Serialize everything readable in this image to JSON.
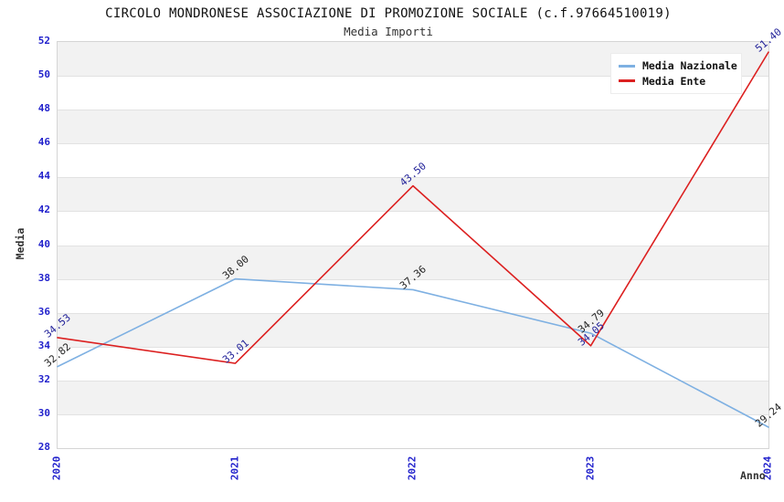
{
  "header": {
    "title": "CIRCOLO MONDRONESE ASSOCIAZIONE DI PROMOZIONE SOCIALE (c.f.97664510019)",
    "subtitle": "Media Importi"
  },
  "chart_data": {
    "type": "line",
    "x": [
      "2020",
      "2021",
      "2022",
      "2023",
      "2024"
    ],
    "xlabel": "Anno",
    "ylabel": "Media",
    "ylim": [
      28,
      52
    ],
    "ytick_step": 2,
    "grid": "horizontal-alternating-bands",
    "legend_position": "top-right",
    "series": [
      {
        "name": "Media Nazionale",
        "color": "#7eb0e2",
        "label_color": "#222222",
        "values": [
          32.82,
          38.0,
          37.36,
          34.79,
          29.24
        ]
      },
      {
        "name": "Media Ente",
        "color": "#dc2020",
        "label_color": "#222299",
        "values": [
          34.53,
          33.01,
          43.5,
          34.05,
          51.4
        ]
      }
    ]
  },
  "colors": {
    "tick_label": "#2222cc",
    "band_gray": "#f2f2f2",
    "grid_line": "#e2e2e2",
    "plot_border": "#d5d5d5",
    "axis_title": "#333333"
  }
}
